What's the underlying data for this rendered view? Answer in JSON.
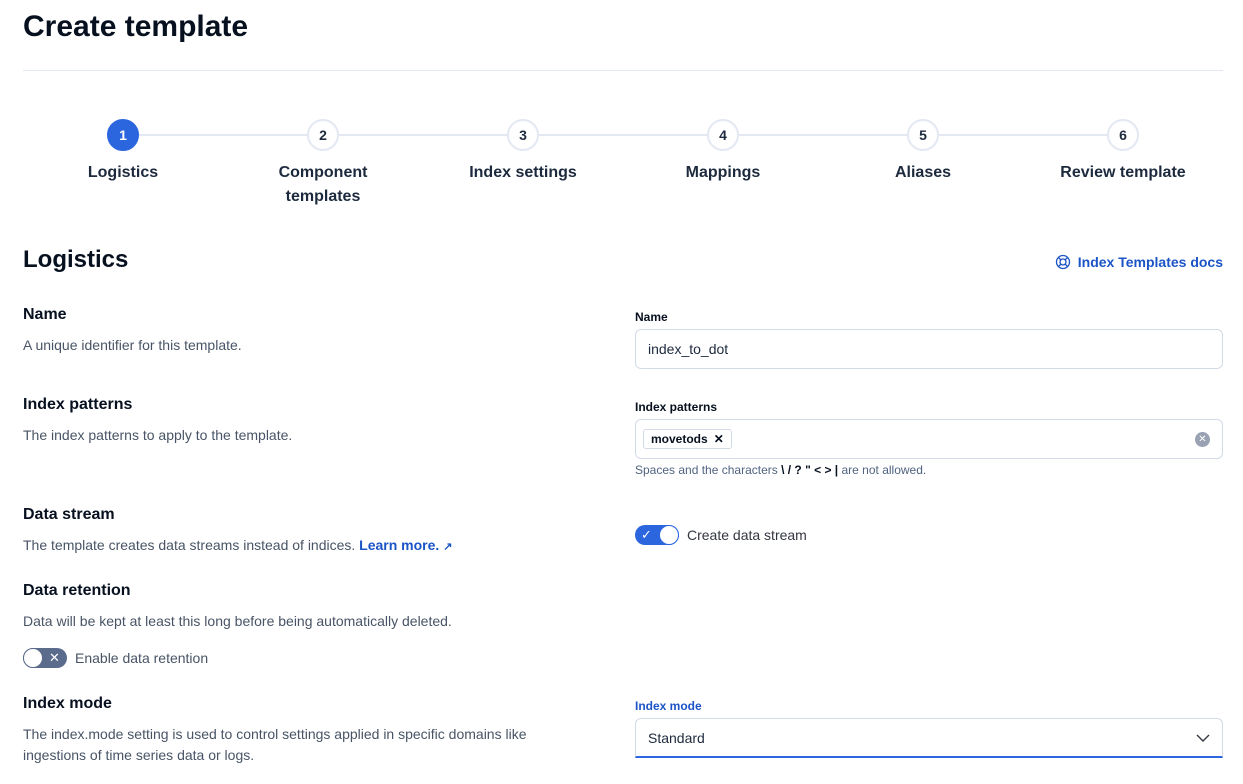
{
  "page_title": "Create template",
  "steps": [
    {
      "number": "1",
      "label": "Logistics",
      "active": true
    },
    {
      "number": "2",
      "label": "Component templates",
      "active": false
    },
    {
      "number": "3",
      "label": "Index settings",
      "active": false
    },
    {
      "number": "4",
      "label": "Mappings",
      "active": false
    },
    {
      "number": "5",
      "label": "Aliases",
      "active": false
    },
    {
      "number": "6",
      "label": "Review template",
      "active": false
    }
  ],
  "section_title": "Logistics",
  "docs_link": "Index Templates docs",
  "name": {
    "title": "Name",
    "description": "A unique identifier for this template.",
    "field_label": "Name",
    "value": "index_to_dot"
  },
  "index_patterns": {
    "title": "Index patterns",
    "description": "The index patterns to apply to the template.",
    "field_label": "Index patterns",
    "chips": [
      "movetods"
    ],
    "help_prefix": "Spaces and the characters ",
    "help_chars": "\\ / ? \" < > |",
    "help_suffix": " are not allowed."
  },
  "data_stream": {
    "title": "Data stream",
    "description": "The template creates data streams instead of indices.",
    "learn_more": "Learn more.",
    "toggle_label": "Create data stream",
    "enabled": true
  },
  "data_retention": {
    "title": "Data retention",
    "description": "Data will be kept at least this long before being automatically deleted.",
    "toggle_label": "Enable data retention",
    "enabled": false
  },
  "index_mode": {
    "title": "Index mode",
    "description": "The index.mode setting is used to control settings applied in specific domains like ingestions of time series data or logs.",
    "field_label": "Index mode",
    "value": "Standard"
  },
  "colors": {
    "accent": "#2b66de",
    "link": "#1b54c6",
    "toggle_off": "#5a6b8c"
  }
}
